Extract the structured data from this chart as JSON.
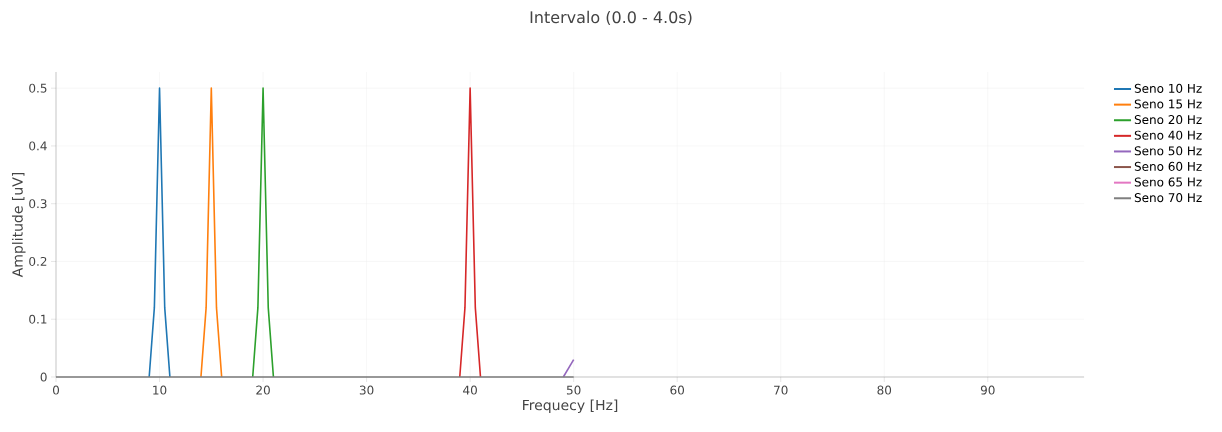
{
  "chart_data": {
    "type": "line",
    "title": "Intervalo (0.0 - 4.0s)",
    "xlabel": "Frequecy [Hz]",
    "ylabel": "Amplitude [uV]",
    "xlim": [
      0,
      99.3
    ],
    "ylim": [
      0,
      0.528
    ],
    "xticks": [
      0,
      10,
      20,
      30,
      40,
      50,
      60,
      70,
      80,
      90
    ],
    "yticks": [
      0,
      0.1,
      0.2,
      0.3,
      0.4,
      0.5
    ],
    "grid": true,
    "legend": "right",
    "marker": "none",
    "line_style": "solid",
    "series": [
      {
        "name": "Seno 10 Hz",
        "color": "#1f77b4",
        "x": [
          9,
          9.5,
          10,
          10.5,
          11
        ],
        "values": [
          0,
          0.12,
          0.5,
          0.12,
          0
        ]
      },
      {
        "name": "Seno 15 Hz",
        "color": "#ff7f0e",
        "x": [
          14,
          14.5,
          15,
          15.5,
          16
        ],
        "values": [
          0,
          0.12,
          0.5,
          0.12,
          0
        ]
      },
      {
        "name": "Seno 20 Hz",
        "color": "#2ca02c",
        "x": [
          19,
          19.5,
          20,
          20.5,
          21
        ],
        "values": [
          0,
          0.12,
          0.5,
          0.12,
          0
        ]
      },
      {
        "name": "Seno 40 Hz",
        "color": "#d62728",
        "x": [
          39,
          39.5,
          40,
          40.5,
          41
        ],
        "values": [
          0,
          0.12,
          0.5,
          0.12,
          0
        ]
      },
      {
        "name": "Seno 50 Hz",
        "color": "#9467bd",
        "x": [
          49,
          50
        ],
        "values": [
          0,
          0.03
        ]
      },
      {
        "name": "Seno 60 Hz",
        "color": "#8c564b"
      },
      {
        "name": "Seno 65 Hz",
        "color": "#e377c2"
      },
      {
        "name": "Seno 70 Hz",
        "color": "#7f7f7f",
        "x": [
          0,
          50
        ],
        "values": [
          0,
          0
        ]
      }
    ]
  }
}
